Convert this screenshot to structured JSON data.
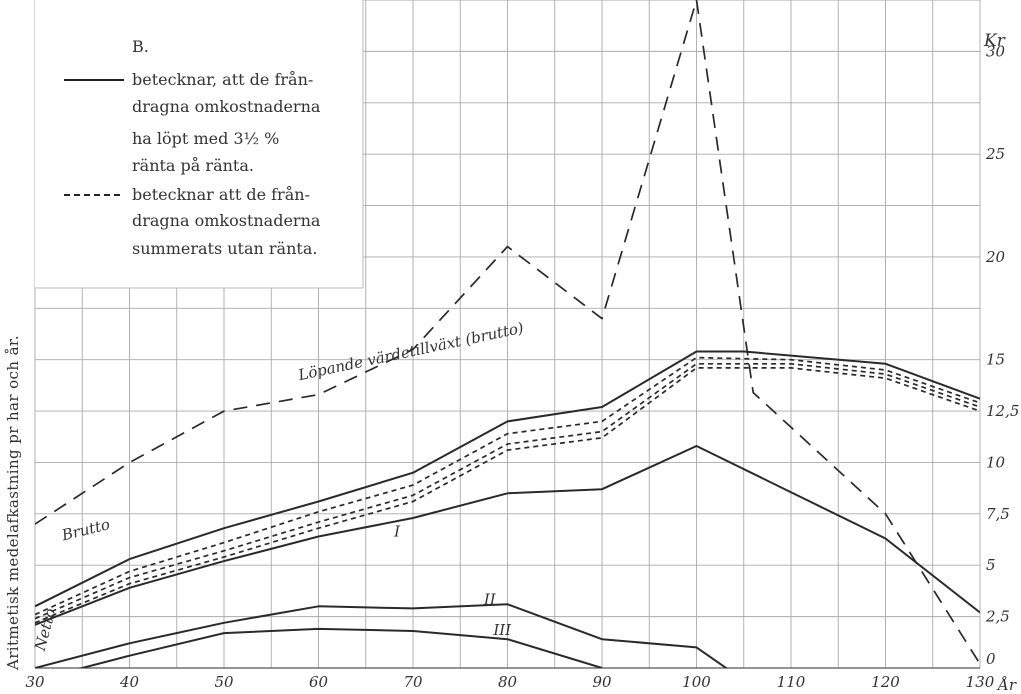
{
  "chart_data": {
    "type": "line",
    "title": "",
    "xlabel": "År",
    "ylabel": "Aritmetisk medelafkastning pr har och år.",
    "y_unit": "Kr",
    "xlim": [
      30,
      130
    ],
    "ylim": [
      0,
      32.5
    ],
    "x_ticks": [
      30,
      40,
      50,
      60,
      70,
      80,
      90,
      100,
      110,
      120,
      130
    ],
    "x_tick_labels": [
      "30",
      "40",
      "50",
      "60",
      "70",
      "80",
      "90",
      "100",
      "110",
      "120",
      "130"
    ],
    "y_ticks": [
      0,
      2.5,
      5,
      7.5,
      10,
      12.5,
      15,
      20,
      25,
      30
    ],
    "y_tick_labels": [
      "0",
      "2,5",
      "5",
      "7,5",
      "10",
      "12,5",
      "15",
      "20",
      "25",
      "30"
    ],
    "grid": true,
    "legend": {
      "position": "top-left",
      "title": "B.",
      "entries": [
        {
          "style": "solid",
          "lines": [
            "betecknar, att de från-",
            "dragna omkostnaderna",
            "ha löpt med 3½ %",
            "ränta på ränta."
          ]
        },
        {
          "style": "dashed",
          "lines": [
            "betecknar att de från-",
            "dragna omkostnaderna",
            "summerats utan ränta."
          ]
        }
      ]
    },
    "annotations": [
      {
        "text": "Löpande värdetillväxt (brutto)",
        "x": 58,
        "y": 14
      },
      {
        "text": "Brutto",
        "x": 33,
        "y": 6.2
      },
      {
        "text": "I",
        "x": 68,
        "y": 6.4
      },
      {
        "text": "II",
        "x": 77.5,
        "y": 3.1
      },
      {
        "text": "III",
        "x": 78.5,
        "y": 1.6
      },
      {
        "text": "Netto",
        "x": 31,
        "y": 0.8
      }
    ],
    "series": [
      {
        "style": "long-dash",
        "x": [
          30,
          40,
          50,
          60,
          70,
          80,
          90,
          100,
          106,
          120,
          130
        ],
        "y": [
          7.0,
          10.0,
          12.5,
          13.3,
          15.5,
          20.5,
          17.0,
          32.5,
          13.4,
          7.5,
          0.2
        ]
      },
      {
        "style": "solid",
        "x": [
          30,
          40,
          50,
          60,
          70,
          80,
          90,
          100,
          105,
          120,
          130
        ],
        "y": [
          3.0,
          5.3,
          6.8,
          8.1,
          9.5,
          12.0,
          12.7,
          15.4,
          15.4,
          14.8,
          13.1
        ]
      },
      {
        "style": "dashed",
        "x": [
          30,
          40,
          50,
          60,
          70,
          80,
          90,
          100,
          110,
          120,
          130
        ],
        "y": [
          2.6,
          4.7,
          6.1,
          7.6,
          8.9,
          11.4,
          12.0,
          15.1,
          15.0,
          14.5,
          12.9
        ]
      },
      {
        "style": "dashed",
        "x": [
          30,
          40,
          50,
          60,
          70,
          80,
          90,
          100,
          110,
          120,
          130
        ],
        "y": [
          2.4,
          4.4,
          5.7,
          7.1,
          8.4,
          10.9,
          11.5,
          14.8,
          14.8,
          14.3,
          12.7
        ]
      },
      {
        "style": "dashed",
        "x": [
          30,
          40,
          50,
          60,
          70,
          80,
          90,
          100,
          110,
          120,
          130
        ],
        "y": [
          2.2,
          4.1,
          5.4,
          6.8,
          8.1,
          10.6,
          11.2,
          14.6,
          14.6,
          14.1,
          12.5
        ]
      },
      {
        "style": "solid",
        "x": [
          30,
          40,
          50,
          60,
          70,
          80,
          90,
          100,
          120,
          130
        ],
        "y": [
          2.1,
          3.9,
          5.2,
          6.4,
          7.3,
          8.5,
          8.7,
          10.8,
          6.3,
          2.7
        ]
      },
      {
        "style": "solid",
        "x": [
          30,
          40,
          50,
          60,
          70,
          80,
          90,
          100,
          105
        ],
        "y": [
          0.0,
          1.2,
          2.2,
          3.0,
          2.9,
          3.1,
          1.4,
          1.0,
          -0.6
        ]
      },
      {
        "style": "solid",
        "x": [
          30,
          40,
          50,
          60,
          70,
          80,
          90
        ],
        "y": [
          -0.6,
          0.6,
          1.7,
          1.9,
          1.8,
          1.4,
          0.0
        ]
      }
    ]
  }
}
